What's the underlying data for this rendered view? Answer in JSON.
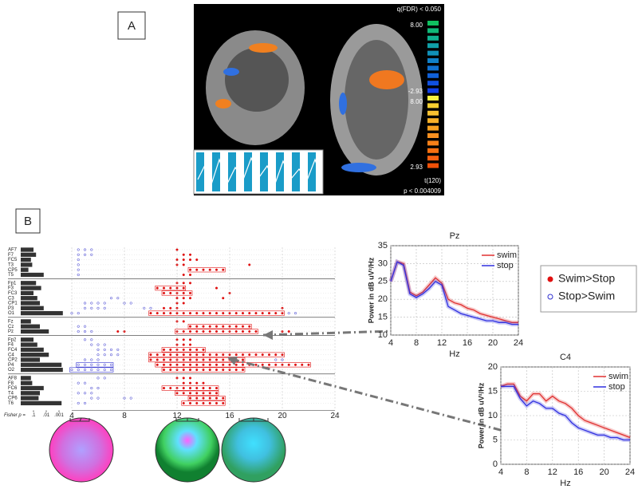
{
  "panels": {
    "a": "A",
    "b": "B"
  },
  "fmri": {
    "top_label": "q(FDR) < 0.050",
    "scale_labels": [
      "8.00",
      "-2.93",
      "8.00",
      "2.93"
    ],
    "t_label": "t(120)",
    "bottom_label": "p < 0.004009"
  },
  "legend": {
    "entries": [
      {
        "name": "Swim>Stop",
        "color": "#e01010"
      },
      {
        "name": "Stop>Swim",
        "color": "#3030d0"
      }
    ]
  },
  "dotplot": {
    "fisher_label": "Fisher p =",
    "fisher_xlim": [
      0,
      3.5
    ],
    "fisher_ticks": [
      {
        "value": 1,
        "label": ".1"
      },
      {
        "value": 2,
        "label": ".01"
      },
      {
        "value": 3,
        "label": ".001"
      }
    ],
    "xlim": [
      4,
      24
    ],
    "xticks": [
      4,
      8,
      12,
      16,
      20,
      24
    ],
    "groups": [
      [
        {
          "name": "AF7",
          "fisher": 1,
          "swim_stop": [
            [
              12,
              12
            ]
          ],
          "stop_swim": [
            [
              4.5,
              5.5
            ]
          ]
        },
        {
          "name": "F7",
          "fisher": 1.2,
          "swim_stop": [
            [
              12.5,
              13
            ]
          ],
          "stop_swim": [
            [
              4.5,
              5.5
            ]
          ]
        },
        {
          "name": "FC5",
          "fisher": 0.8,
          "swim_stop": [
            [
              12,
              13.5
            ]
          ],
          "stop_swim": [
            [
              4.5,
              4.5
            ]
          ]
        },
        {
          "name": "T3",
          "fisher": 0.9,
          "swim_stop": [
            [
              12,
              12.5
            ],
            [
              17.5,
              17.5
            ]
          ],
          "stop_swim": [
            [
              4.5,
              4.5
            ]
          ]
        },
        {
          "name": "CP5",
          "fisher": 0.6,
          "swim_stop": [
            [
              13,
              15.5
            ]
          ],
          "stop_swim": [
            [
              4.5,
              4.5
            ]
          ]
        },
        {
          "name": "T5",
          "fisher": 1.8,
          "swim_stop": [
            [
              12.5,
              13
            ]
          ],
          "stop_swim": [
            [
              4.5,
              4.5
            ]
          ]
        }
      ],
      [
        {
          "name": "Fp1",
          "fisher": 1.2,
          "swim_stop": [
            [
              12,
              13
            ]
          ],
          "stop_swim": []
        },
        {
          "name": "F3",
          "fisher": 1.6,
          "swim_stop": [
            [
              10.5,
              12.5
            ],
            [
              15,
              15
            ]
          ],
          "stop_swim": []
        },
        {
          "name": "FC3",
          "fisher": 1,
          "swim_stop": [
            [
              11,
              13
            ],
            [
              16,
              16
            ]
          ],
          "stop_swim": []
        },
        {
          "name": "C3",
          "fisher": 1.3,
          "swim_stop": [
            [
              12,
              13
            ],
            [
              15.5,
              15.5
            ]
          ],
          "stop_swim": [
            [
              7,
              7.5
            ]
          ]
        },
        {
          "name": "CP1",
          "fisher": 1.5,
          "swim_stop": [
            [
              12,
              12.5
            ]
          ],
          "stop_swim": [
            [
              5,
              6.5
            ],
            [
              8,
              8.5
            ]
          ]
        },
        {
          "name": "P3",
          "fisher": 1.8,
          "swim_stop": [
            [
              11,
              12
            ],
            [
              20,
              20
            ]
          ],
          "stop_swim": [
            [
              5,
              6.5
            ],
            [
              9.5,
              10
            ]
          ]
        },
        {
          "name": "O1",
          "fisher": 3.3,
          "swim_stop": [
            [
              10,
              20
            ]
          ],
          "stop_swim": [
            [
              4,
              4.5
            ],
            [
              20.5,
              21
            ]
          ]
        }
      ],
      [
        {
          "name": "Fz",
          "fisher": 0.8,
          "swim_stop": [
            [
              12,
              12.5
            ]
          ],
          "stop_swim": []
        },
        {
          "name": "Cz",
          "fisher": 1.5,
          "swim_stop": [
            [
              13,
              17.5
            ]
          ],
          "stop_swim": [
            [
              4.5,
              5
            ]
          ]
        },
        {
          "name": "Pz",
          "fisher": 2.2,
          "swim_stop": [
            [
              7.5,
              8
            ],
            [
              12,
              18
            ],
            [
              20,
              20.5
            ]
          ],
          "stop_swim": [
            [
              4.5,
              5.5
            ]
          ]
        }
      ],
      [
        {
          "name": "Fp2",
          "fisher": 1,
          "swim_stop": [
            [
              12,
              13
            ]
          ],
          "stop_swim": [
            [
              5,
              5.5
            ]
          ]
        },
        {
          "name": "F4",
          "fisher": 1.3,
          "swim_stop": [
            [
              12,
              13
            ]
          ],
          "stop_swim": [
            [
              5.5,
              6.5
            ]
          ]
        },
        {
          "name": "FC4",
          "fisher": 1.8,
          "swim_stop": [
            [
              11,
              14
            ]
          ],
          "stop_swim": [
            [
              6,
              7.5
            ]
          ]
        },
        {
          "name": "C4",
          "fisher": 2.2,
          "swim_stop": [
            [
              10,
              20
            ]
          ],
          "stop_swim": [
            [
              6,
              7.5
            ]
          ]
        },
        {
          "name": "CP2",
          "fisher": 1.5,
          "swim_stop": [
            [
              10,
              17
            ]
          ],
          "stop_swim": [
            [
              5,
              6
            ],
            [
              19.5,
              20
            ]
          ]
        },
        {
          "name": "P4",
          "fisher": 3.2,
          "swim_stop": [
            [
              10.5,
              22
            ]
          ],
          "stop_swim": [
            [
              4.5,
              7
            ]
          ]
        },
        {
          "name": "O2",
          "fisher": 3.3,
          "swim_stop": [
            [
              11,
              17
            ]
          ],
          "stop_swim": [
            [
              4,
              7
            ]
          ]
        }
      ],
      [
        {
          "name": "AF8",
          "fisher": 0.8,
          "swim_stop": [
            [
              12,
              13
            ]
          ],
          "stop_swim": [
            [
              6,
              6.5
            ]
          ]
        },
        {
          "name": "F8",
          "fisher": 0.9,
          "swim_stop": [
            [
              12.5,
              14
            ]
          ],
          "stop_swim": [
            [
              4.5,
              5
            ]
          ]
        },
        {
          "name": "FC6",
          "fisher": 1.8,
          "swim_stop": [
            [
              11,
              15
            ]
          ],
          "stop_swim": [
            [
              5.5,
              6
            ]
          ]
        },
        {
          "name": "T4",
          "fisher": 1.5,
          "swim_stop": [
            [
              12,
              15
            ]
          ],
          "stop_swim": [
            [
              4.5,
              5.5
            ]
          ]
        },
        {
          "name": "CP6",
          "fisher": 1.4,
          "swim_stop": [
            [
              13,
              15.5
            ]
          ],
          "stop_swim": [
            [
              5.5,
              6
            ],
            [
              8,
              8.5
            ]
          ]
        },
        {
          "name": "T6",
          "fisher": 3.2,
          "swim_stop": [
            [
              12.5,
              15.5
            ]
          ],
          "stop_swim": [
            [
              4.5,
              5
            ]
          ]
        }
      ]
    ]
  },
  "chart_data": [
    {
      "type": "line",
      "title": "Pz",
      "x_label": "Hz",
      "y_label": "Power in dB uV²/Hz",
      "x": [
        4,
        5,
        6,
        7,
        8,
        9,
        10,
        11,
        12,
        13,
        14,
        15,
        16,
        17,
        18,
        19,
        20,
        21,
        22,
        23,
        24
      ],
      "xlim": [
        4,
        24
      ],
      "xticks": [
        4,
        8,
        12,
        16,
        20,
        24
      ],
      "ylim": [
        10,
        35
      ],
      "yticks": [
        10,
        15,
        20,
        25,
        30,
        35
      ],
      "grid": true,
      "series": [
        {
          "name": "swim",
          "color": "#e03030",
          "values": [
            25,
            30.5,
            30,
            22,
            21,
            22,
            24,
            26,
            24.5,
            20,
            19,
            18.5,
            17.5,
            17,
            16,
            15.5,
            15,
            14.5,
            14,
            13.5,
            13.5
          ]
        },
        {
          "name": "stop",
          "color": "#3030e0",
          "values": [
            25,
            30.5,
            29.5,
            21.5,
            20.5,
            21.5,
            23,
            25,
            24,
            18,
            17,
            16,
            15.5,
            15,
            14.5,
            14,
            14,
            13.5,
            13.5,
            13,
            13
          ]
        }
      ]
    },
    {
      "type": "line",
      "title": "C4",
      "x_label": "Hz",
      "y_label": "Power in dB uV²/Hz",
      "x": [
        4,
        5,
        6,
        7,
        8,
        9,
        10,
        11,
        12,
        13,
        14,
        15,
        16,
        17,
        18,
        19,
        20,
        21,
        22,
        23,
        24
      ],
      "xlim": [
        4,
        24
      ],
      "xticks": [
        4,
        8,
        12,
        16,
        20,
        24
      ],
      "ylim": [
        0,
        20
      ],
      "yticks": [
        0,
        5,
        10,
        15,
        20
      ],
      "grid": true,
      "series": [
        {
          "name": "swim",
          "color": "#e03030",
          "values": [
            16,
            16.5,
            16.5,
            14,
            13,
            14.5,
            14.5,
            13,
            14,
            13,
            12.5,
            11.5,
            10,
            9,
            8.5,
            8,
            7.5,
            7,
            6.5,
            6,
            5.5
          ]
        },
        {
          "name": "stop",
          "color": "#3030e0",
          "values": [
            16,
            16,
            16,
            13.5,
            12,
            13,
            12.5,
            11.5,
            11.5,
            10.5,
            10,
            8.5,
            7.5,
            7,
            6.5,
            6,
            6,
            5.5,
            5.5,
            5,
            5
          ]
        }
      ]
    }
  ]
}
